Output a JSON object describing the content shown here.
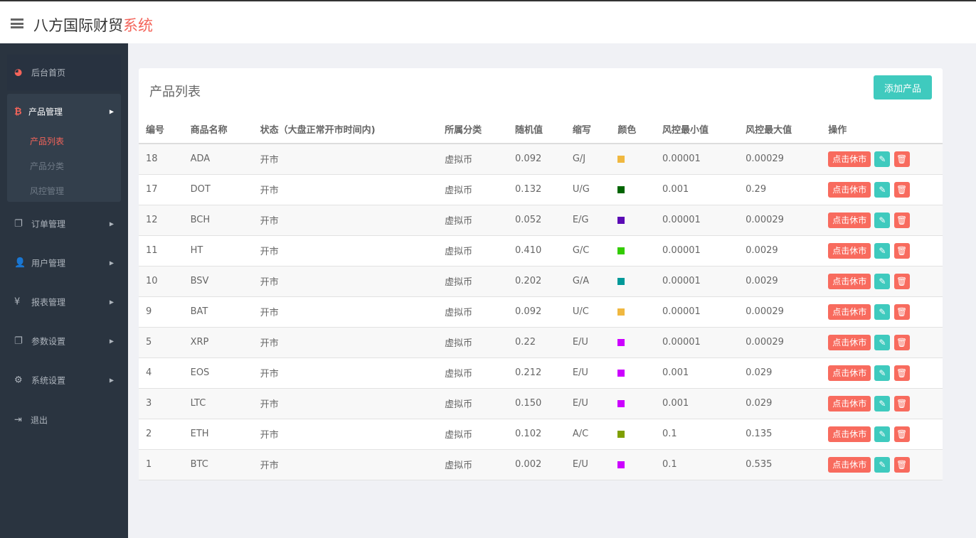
{
  "header": {
    "brand_main": "八方国际财贸",
    "brand_accent": "系统"
  },
  "sidebar": {
    "home": "后台首页",
    "product": {
      "label": "产品管理",
      "subs": [
        "产品列表",
        "产品分类",
        "风控管理"
      ]
    },
    "items": [
      "订单管理",
      "用户管理",
      "报表管理",
      "参数设置",
      "系统设置"
    ],
    "logout": "退出"
  },
  "main": {
    "title": "产品列表",
    "add_label": "添加产品",
    "columns": [
      "编号",
      "商品名称",
      "状态（大盘正常开市时间内)",
      "所属分类",
      "随机值",
      "缩写",
      "颜色",
      "风控最小值",
      "风控最大值",
      "操作"
    ],
    "action_label": "点击休市",
    "rows": [
      {
        "id": "18",
        "name": "ADA",
        "status": "开市",
        "cat": "虚拟币",
        "rand": "0.092",
        "abbr": "G/J",
        "color": "#f0b840",
        "min": "0.00001",
        "max": "0.00029"
      },
      {
        "id": "17",
        "name": "DOT",
        "status": "开市",
        "cat": "虚拟币",
        "rand": "0.132",
        "abbr": "U/G",
        "color": "#006400",
        "min": "0.001",
        "max": "0.29"
      },
      {
        "id": "12",
        "name": "BCH",
        "status": "开市",
        "cat": "虚拟币",
        "rand": "0.052",
        "abbr": "E/G",
        "color": "#5b0bb5",
        "min": "0.00001",
        "max": "0.00029"
      },
      {
        "id": "11",
        "name": "HT",
        "status": "开市",
        "cat": "虚拟币",
        "rand": "0.410",
        "abbr": "G/C",
        "color": "#33cc00",
        "min": "0.00001",
        "max": "0.0029"
      },
      {
        "id": "10",
        "name": "BSV",
        "status": "开市",
        "cat": "虚拟币",
        "rand": "0.202",
        "abbr": "G/A",
        "color": "#009999",
        "min": "0.00001",
        "max": "0.0029"
      },
      {
        "id": "9",
        "name": "BAT",
        "status": "开市",
        "cat": "虚拟币",
        "rand": "0.092",
        "abbr": "U/C",
        "color": "#f0b840",
        "min": "0.00001",
        "max": "0.00029"
      },
      {
        "id": "5",
        "name": "XRP",
        "status": "开市",
        "cat": "虚拟币",
        "rand": "0.22",
        "abbr": "E/U",
        "color": "#cc00ff",
        "min": "0.00001",
        "max": "0.00029"
      },
      {
        "id": "4",
        "name": "EOS",
        "status": "开市",
        "cat": "虚拟币",
        "rand": "0.212",
        "abbr": "E/U",
        "color": "#cc00ff",
        "min": "0.001",
        "max": "0.029"
      },
      {
        "id": "3",
        "name": "LTC",
        "status": "开市",
        "cat": "虚拟币",
        "rand": "0.150",
        "abbr": "E/U",
        "color": "#cc00ff",
        "min": "0.001",
        "max": "0.029"
      },
      {
        "id": "2",
        "name": "ETH",
        "status": "开市",
        "cat": "虚拟币",
        "rand": "0.102",
        "abbr": "A/C",
        "color": "#7f9f00",
        "min": "0.1",
        "max": "0.135"
      },
      {
        "id": "1",
        "name": "BTC",
        "status": "开市",
        "cat": "虚拟币",
        "rand": "0.002",
        "abbr": "E/U",
        "color": "#cc00ff",
        "min": "0.1",
        "max": "0.535"
      }
    ]
  },
  "colors": {
    "accent": "#f4645a",
    "teal": "#3fcabe",
    "sidebar": "#2a3440"
  }
}
